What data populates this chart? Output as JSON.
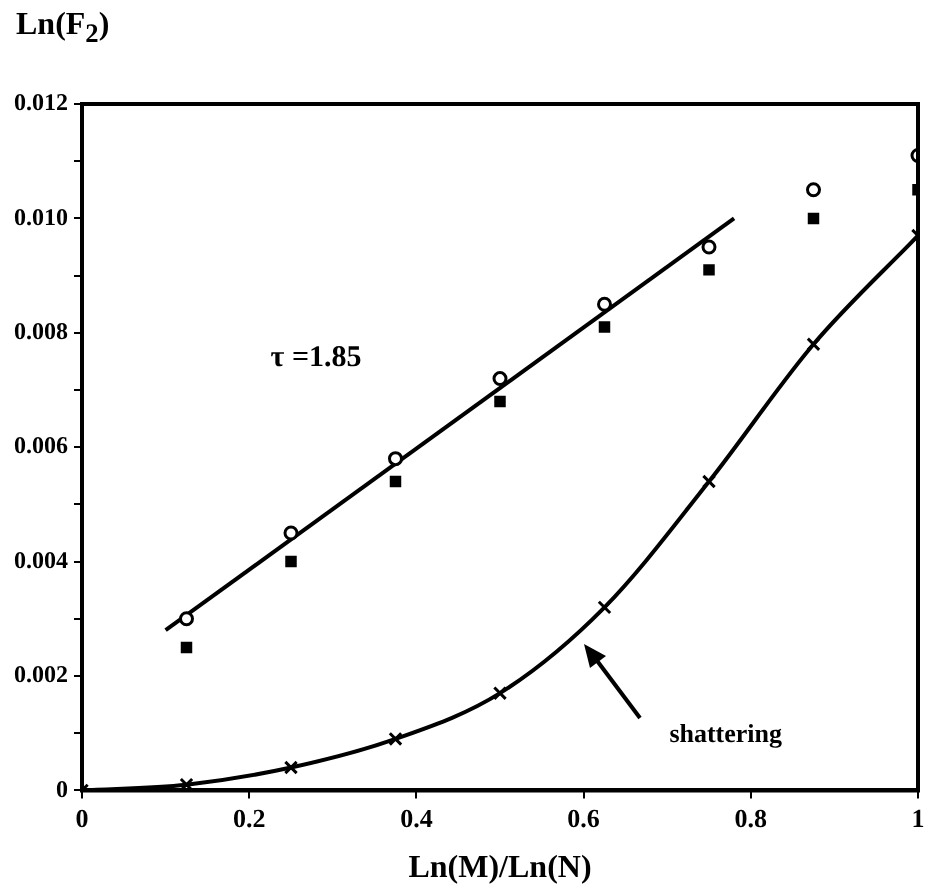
{
  "chart_data": {
    "type": "scatter",
    "xlabel": "Ln(M)/Ln(N)",
    "ylabel": "Ln(F$_{2}$)",
    "xlim": [
      0,
      1
    ],
    "xticks": [
      0,
      0.2,
      0.4,
      0.6,
      0.8,
      1
    ],
    "ylim": [
      0,
      0.012
    ],
    "yticks": [
      0,
      {
        "value": 0.001,
        "label": null
      },
      0.002,
      {
        "value": 0.003,
        "label": null
      },
      0.004,
      {
        "value": 0.005,
        "label": null
      },
      0.006,
      {
        "value": 0.007,
        "label": null
      },
      0.008,
      {
        "value": 0.009,
        "label": null
      },
      {
        "value": 0.01,
        "label": "0.010"
      },
      {
        "value": 0.011,
        "label": null
      },
      0.012
    ],
    "legend": false,
    "grid": false,
    "series": [
      {
        "marker": "square",
        "color": "#000000",
        "x": [
          0.125,
          0.25,
          0.375,
          0.5,
          0.625,
          0.75,
          0.875,
          1
        ],
        "values": [
          0.0025,
          0.004,
          0.0054,
          0.0068,
          0.0081,
          0.0091,
          0.01,
          0.0105
        ]
      },
      {
        "marker": "circle",
        "color": "#000000",
        "x": [
          0.125,
          0.25,
          0.375,
          0.5,
          0.625,
          0.75,
          0.875,
          1
        ],
        "values": [
          0.003,
          0.0045,
          0.0058,
          0.0072,
          0.0085,
          0.0095,
          0.0105,
          0.0111
        ]
      },
      {
        "type": "line",
        "marker": "none",
        "color": "#000000",
        "x": [
          0.1,
          0.78
        ],
        "values": [
          0.0028,
          0.01
        ]
      },
      {
        "type": "line",
        "marker": "cross",
        "color": "#000000",
        "x": [
          0,
          0.125,
          0.25,
          0.375,
          0.5,
          0.625,
          0.75,
          0.875,
          1
        ],
        "values": [
          0,
          0.0001,
          0.0004,
          0.0009,
          0.0017,
          0.0032,
          0.0054,
          0.0078,
          0.0097
        ]
      }
    ],
    "annotations": [
      "τ =1.85",
      "shattering"
    ]
  }
}
